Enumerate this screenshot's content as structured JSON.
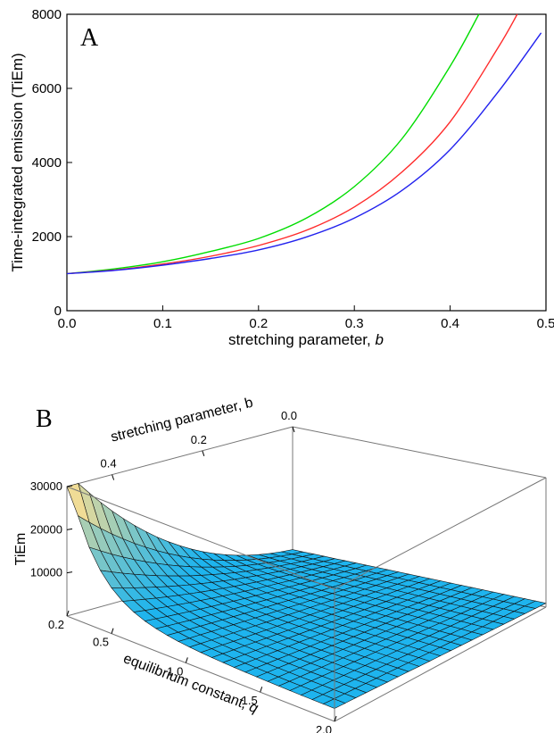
{
  "chart_data": [
    {
      "panel": "A",
      "type": "line",
      "xlabel": "stretching parameter, ",
      "xlabel_var": "b",
      "ylabel": "Time-integrated emission (TiEm)",
      "xlim": [
        0,
        0.5
      ],
      "ylim": [
        0,
        8000
      ],
      "xticks": [
        "0.0",
        "0.1",
        "0.2",
        "0.3",
        "0.4",
        "0.5"
      ],
      "yticks": [
        "0",
        "2000",
        "4000",
        "6000",
        "8000"
      ],
      "grid": false,
      "series": [
        {
          "color": "#00dd00",
          "x": [
            0,
            0.05,
            0.1,
            0.15,
            0.2,
            0.25,
            0.3,
            0.35,
            0.4,
            0.43
          ],
          "y": [
            1000,
            1130,
            1320,
            1600,
            1950,
            2500,
            3350,
            4650,
            6600,
            8000
          ]
        },
        {
          "color": "#ff2a2a",
          "x": [
            0,
            0.05,
            0.1,
            0.15,
            0.2,
            0.25,
            0.3,
            0.35,
            0.4,
            0.45,
            0.47
          ],
          "y": [
            1000,
            1100,
            1260,
            1470,
            1760,
            2170,
            2800,
            3750,
            5100,
            7100,
            8000
          ]
        },
        {
          "color": "#2222ee",
          "x": [
            0,
            0.05,
            0.1,
            0.15,
            0.2,
            0.25,
            0.3,
            0.35,
            0.4,
            0.45,
            0.495
          ],
          "y": [
            1000,
            1090,
            1230,
            1410,
            1640,
            1990,
            2500,
            3250,
            4350,
            5900,
            7500
          ]
        }
      ]
    },
    {
      "panel": "B",
      "type": "surface",
      "zlabel": "TiEm",
      "blabel": "stretching parameter, b",
      "qlabel": "equilibrium constant, ",
      "qlabel_var": "q",
      "zticks": [
        "30000",
        "20000",
        "10000"
      ],
      "bticks": [
        "0.0",
        "0.2",
        "0.4"
      ],
      "qticks": [
        "0.2",
        "0.5",
        "1.0",
        "1.5",
        "2.0"
      ],
      "b_range": [
        0,
        0.5
      ],
      "q_range": [
        0.2,
        2.0
      ],
      "z_range": [
        0,
        30000
      ],
      "surface_color": "#1eb4ee",
      "max_color": "#f0dc96"
    }
  ]
}
